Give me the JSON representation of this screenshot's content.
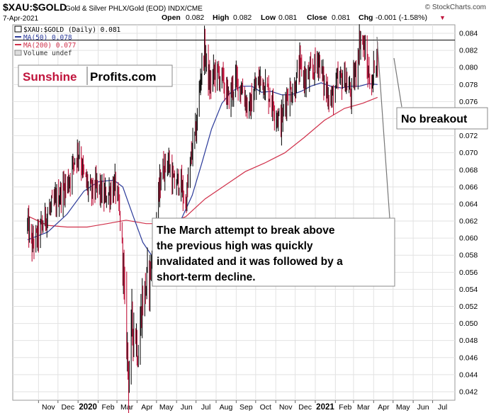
{
  "header": {
    "symbol": "$XAU:$GOLD",
    "description": "Gold & Silver PHLX/Gold (EOD) INDX/CME",
    "date": "7-Apr-2021",
    "credit": "© StockCharts.com",
    "open_label": "Open",
    "open_value": "0.082",
    "high_label": "High",
    "high_value": "0.082",
    "low_label": "Low",
    "low_value": "0.081",
    "close_label": "Close",
    "close_value": "0.081",
    "chg_label": "Chg",
    "chg_value": "-0.001 (-1.58%)"
  },
  "legend": {
    "main": "$XAU:$GOLD (Daily) 0.081",
    "ma50": "MA(50) 0.078",
    "ma200": "MA(200) 0.077",
    "volume": "Volume undef"
  },
  "logo": {
    "part1": "Sunshine",
    "part2": "Profits.com"
  },
  "annotations": {
    "no_breakout": "No breakout",
    "march_line1": "The March attempt to break above",
    "march_line2": "the previous high was quickly",
    "march_line3": "invalidated and it was followed by a",
    "march_line4": "short-term decline."
  },
  "colors": {
    "price": "#c0143c",
    "price_dark": "#111111",
    "ma50": "#2b3a9a",
    "ma200": "#d0304a",
    "resistance": "#000000",
    "logo_red": "#c0143c"
  },
  "chart_data": {
    "type": "line",
    "ylim": [
      0.041,
      0.085
    ],
    "yticks": [
      "0.042",
      "0.044",
      "0.046",
      "0.048",
      "0.050",
      "0.052",
      "0.054",
      "0.056",
      "0.058",
      "0.060",
      "0.062",
      "0.064",
      "0.066",
      "0.068",
      "0.070",
      "0.072",
      "0.074",
      "0.076",
      "0.078",
      "0.080",
      "0.082",
      "0.084"
    ],
    "xticks": [
      "Nov",
      "Dec",
      "2020",
      "Feb",
      "Mar",
      "Apr",
      "May",
      "Jun",
      "Jul",
      "Aug",
      "Sep",
      "Oct",
      "Nov",
      "Dec",
      "2021",
      "Feb",
      "Mar",
      "Apr",
      "May",
      "Jun",
      "Jul"
    ],
    "resistance_level": 0.0832,
    "price_points": [
      [
        "2019-10-15",
        0.0615
      ],
      [
        "2019-10-22",
        0.0592
      ],
      [
        "2019-11-01",
        0.0604
      ],
      [
        "2019-11-12",
        0.0625
      ],
      [
        "2019-11-25",
        0.064
      ],
      [
        "2019-12-05",
        0.0652
      ],
      [
        "2019-12-18",
        0.0668
      ],
      [
        "2019-12-27",
        0.0695
      ],
      [
        "2020-01-03",
        0.0702
      ],
      [
        "2020-01-10",
        0.0672
      ],
      [
        "2020-01-20",
        0.0654
      ],
      [
        "2020-01-31",
        0.066
      ],
      [
        "2020-02-10",
        0.0648
      ],
      [
        "2020-02-20",
        0.0655
      ],
      [
        "2020-02-27",
        0.0662
      ],
      [
        "2020-03-04",
        0.0635
      ],
      [
        "2020-03-09",
        0.059
      ],
      [
        "2020-03-13",
        0.052
      ],
      [
        "2020-03-17",
        0.047
      ],
      [
        "2020-03-19",
        0.0436
      ],
      [
        "2020-03-24",
        0.05
      ],
      [
        "2020-03-30",
        0.0488
      ],
      [
        "2020-04-03",
        0.0462
      ],
      [
        "2020-04-08",
        0.052
      ],
      [
        "2020-04-15",
        0.0545
      ],
      [
        "2020-04-22",
        0.0562
      ],
      [
        "2020-04-29",
        0.061
      ],
      [
        "2020-05-08",
        0.0675
      ],
      [
        "2020-05-18",
        0.0692
      ],
      [
        "2020-05-28",
        0.0662
      ],
      [
        "2020-06-05",
        0.0668
      ],
      [
        "2020-06-15",
        0.064
      ],
      [
        "2020-06-25",
        0.0705
      ],
      [
        "2020-07-01",
        0.0725
      ],
      [
        "2020-07-08",
        0.079
      ],
      [
        "2020-07-14",
        0.0822
      ],
      [
        "2020-07-22",
        0.0778
      ],
      [
        "2020-07-30",
        0.0795
      ],
      [
        "2020-08-10",
        0.0788
      ],
      [
        "2020-08-20",
        0.0762
      ],
      [
        "2020-08-31",
        0.0785
      ],
      [
        "2020-09-10",
        0.0775
      ],
      [
        "2020-09-21",
        0.0748
      ],
      [
        "2020-09-30",
        0.0775
      ],
      [
        "2020-10-10",
        0.0788
      ],
      [
        "2020-10-20",
        0.0772
      ],
      [
        "2020-10-30",
        0.0752
      ],
      [
        "2020-11-09",
        0.0735
      ],
      [
        "2020-11-18",
        0.0768
      ],
      [
        "2020-11-30",
        0.0775
      ],
      [
        "2020-12-08",
        0.0802
      ],
      [
        "2020-12-17",
        0.0785
      ],
      [
        "2020-12-28",
        0.0795
      ],
      [
        "2021-01-06",
        0.0812
      ],
      [
        "2021-01-15",
        0.0778
      ],
      [
        "2021-01-26",
        0.0762
      ],
      [
        "2021-02-04",
        0.0782
      ],
      [
        "2021-02-15",
        0.0788
      ],
      [
        "2021-02-25",
        0.0768
      ],
      [
        "2021-03-05",
        0.0798
      ],
      [
        "2021-03-11",
        0.0835
      ],
      [
        "2021-03-16",
        0.0828
      ],
      [
        "2021-03-23",
        0.0795
      ],
      [
        "2021-03-30",
        0.0778
      ],
      [
        "2021-04-02",
        0.0805
      ],
      [
        "2021-04-07",
        0.0815
      ]
    ],
    "ma50_points": [
      [
        "2019-10-15",
        0.0598
      ],
      [
        "2019-11-15",
        0.0607
      ],
      [
        "2019-12-15",
        0.0628
      ],
      [
        "2020-01-10",
        0.0655
      ],
      [
        "2020-02-01",
        0.0666
      ],
      [
        "2020-02-25",
        0.0668
      ],
      [
        "2020-03-10",
        0.066
      ],
      [
        "2020-03-25",
        0.0628
      ],
      [
        "2020-04-10",
        0.0595
      ],
      [
        "2020-04-25",
        0.0578
      ],
      [
        "2020-05-10",
        0.0582
      ],
      [
        "2020-05-25",
        0.0602
      ],
      [
        "2020-06-10",
        0.0625
      ],
      [
        "2020-06-25",
        0.065
      ],
      [
        "2020-07-10",
        0.0688
      ],
      [
        "2020-07-25",
        0.0728
      ],
      [
        "2020-08-10",
        0.0758
      ],
      [
        "2020-08-25",
        0.0772
      ],
      [
        "2020-09-10",
        0.0778
      ],
      [
        "2020-09-25",
        0.0778
      ],
      [
        "2020-10-10",
        0.0771
      ],
      [
        "2020-10-25",
        0.0772
      ],
      [
        "2020-11-10",
        0.0768
      ],
      [
        "2020-11-25",
        0.0768
      ],
      [
        "2020-12-10",
        0.0772
      ],
      [
        "2020-12-25",
        0.0778
      ],
      [
        "2021-01-10",
        0.0782
      ],
      [
        "2021-01-25",
        0.0778
      ],
      [
        "2021-02-10",
        0.0776
      ],
      [
        "2021-02-25",
        0.0778
      ],
      [
        "2021-03-10",
        0.0778
      ],
      [
        "2021-03-25",
        0.0781
      ],
      [
        "2021-04-07",
        0.078
      ]
    ],
    "ma200_points": [
      [
        "2019-10-15",
        0.0626
      ],
      [
        "2019-11-15",
        0.0615
      ],
      [
        "2019-12-15",
        0.0613
      ],
      [
        "2020-01-15",
        0.0613
      ],
      [
        "2020-02-15",
        0.0617
      ],
      [
        "2020-03-15",
        0.0621
      ],
      [
        "2020-04-15",
        0.0617
      ],
      [
        "2020-05-15",
        0.0617
      ],
      [
        "2020-06-15",
        0.0625
      ],
      [
        "2020-07-15",
        0.0646
      ],
      [
        "2020-08-15",
        0.0662
      ],
      [
        "2020-09-15",
        0.0678
      ],
      [
        "2020-10-15",
        0.0688
      ],
      [
        "2020-11-15",
        0.07
      ],
      [
        "2020-12-15",
        0.0718
      ],
      [
        "2021-01-15",
        0.0738
      ],
      [
        "2021-02-15",
        0.0752
      ],
      [
        "2021-03-15",
        0.0758
      ],
      [
        "2021-04-07",
        0.0765
      ]
    ]
  }
}
